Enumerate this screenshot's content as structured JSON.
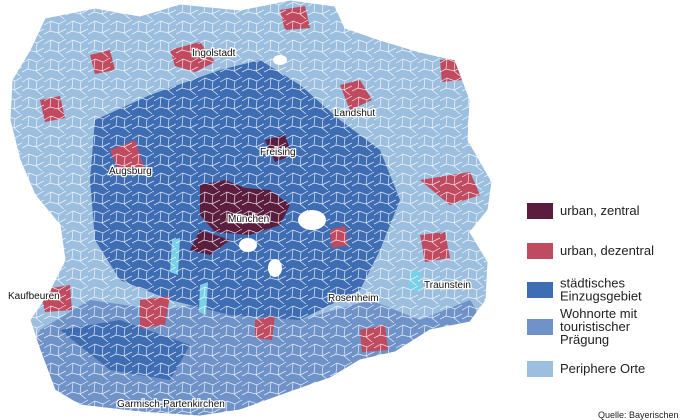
{
  "map": {
    "places": [
      "Ingolstadt",
      "Landshut",
      "Freising",
      "Augsburg",
      "München",
      "Kaufbeuren",
      "Rosenheim",
      "Traunstein",
      "Garmisch-Partenkirchen"
    ],
    "legend": [
      {
        "label": [
          "urban, zentral"
        ],
        "color": "#5a1d3d"
      },
      {
        "label": [
          "urban, dezentral"
        ],
        "color": "#c04a5f"
      },
      {
        "label": [
          "städtisches",
          "Einzugsgebiet"
        ],
        "color": "#3f6db4"
      },
      {
        "label": [
          "Wohnorte mit",
          "touristischer",
          "Prägung"
        ],
        "color": "#6f93c9"
      },
      {
        "label": [
          "Periphere Orte"
        ],
        "color": "#9dbfdf"
      }
    ],
    "source": "Quelle: Bayerischen"
  }
}
